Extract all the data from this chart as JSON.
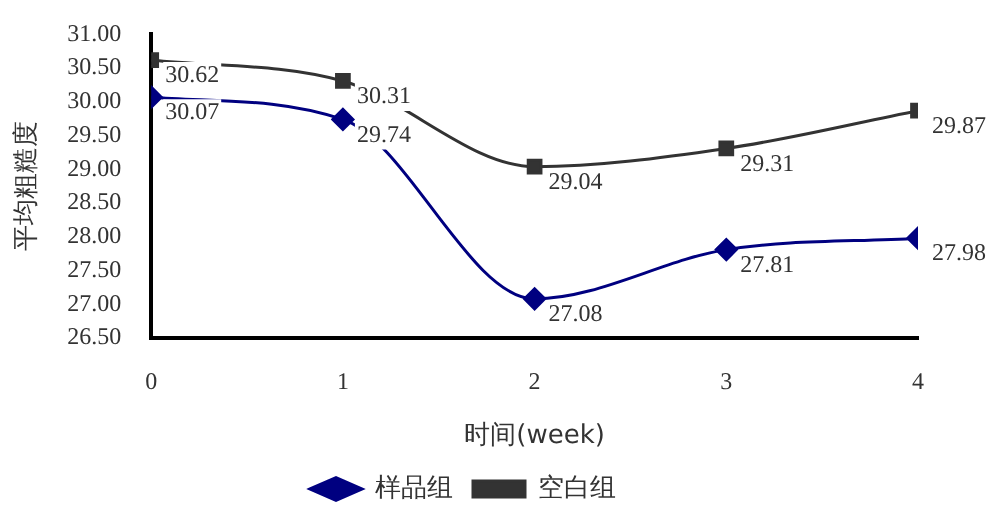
{
  "chart_data": {
    "type": "line",
    "xlabel": "时间(week)",
    "ylabel": "平均粗糙度",
    "x": [
      0,
      1,
      2,
      3,
      4
    ],
    "series": [
      {
        "name": "样品组",
        "color": "#000080",
        "values": [
          30.07,
          29.74,
          27.08,
          27.81,
          27.98
        ],
        "marker": "diamond"
      },
      {
        "name": "空白组",
        "color": "#333333",
        "values": [
          30.62,
          30.31,
          29.04,
          29.31,
          29.87
        ],
        "marker": "square"
      }
    ],
    "xlim": [
      0,
      4
    ],
    "xticks": [
      0,
      1,
      2,
      3,
      4
    ],
    "ylim": [
      26.5,
      31
    ],
    "yticks": [
      {
        "value": 26.5,
        "label": "26.50"
      },
      {
        "value": 27,
        "label": "27.00"
      },
      {
        "value": 27.5,
        "label": "27.50"
      },
      {
        "value": 28,
        "label": "28.00"
      },
      {
        "value": 28.5,
        "label": "28.50"
      },
      {
        "value": 29,
        "label": "29.00"
      },
      {
        "value": 29.5,
        "label": "29.50"
      },
      {
        "value": 30,
        "label": "30.00"
      },
      {
        "value": 30.5,
        "label": "30.50"
      },
      {
        "value": 31,
        "label": "31.00"
      }
    ],
    "grid": false,
    "legend": "bottom",
    "data_labels": true
  }
}
